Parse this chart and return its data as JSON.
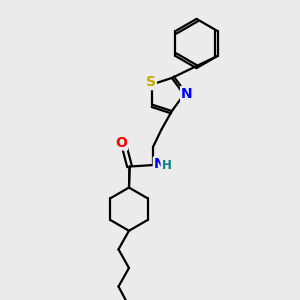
{
  "bg_color": "#ebebeb",
  "atom_colors": {
    "O": "#ff0000",
    "N": "#0000ff",
    "S": "#ccaa00",
    "C": "#000000",
    "H": "#008080"
  },
  "bond_color": "#000000",
  "bond_width": 1.6,
  "font_size_atoms": 10,
  "font_size_h": 8.5
}
